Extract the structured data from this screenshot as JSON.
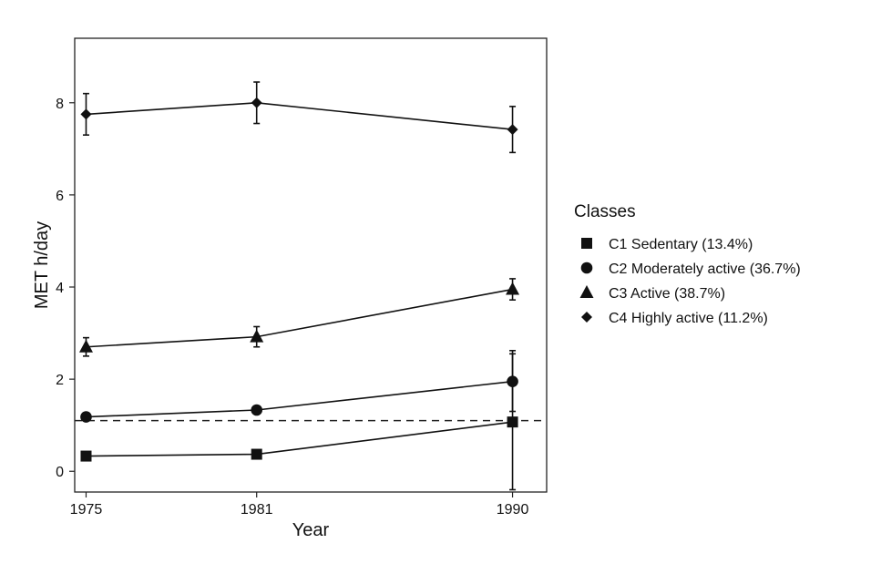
{
  "chart_data": {
    "type": "line",
    "title": "",
    "xlabel": "Year",
    "ylabel": "MET h/day",
    "x": [
      1975,
      1981,
      1990
    ],
    "x_ticks": [
      "1975",
      "1981",
      "1990"
    ],
    "y_ticks": [
      "0",
      "2",
      "4",
      "6",
      "8"
    ],
    "xlim": [
      1974.6,
      1991.2
    ],
    "ylim": [
      -0.45,
      9.4
    ],
    "grid": false,
    "reference_line": {
      "y": 1.1,
      "style": "dashed"
    },
    "legend": {
      "title": "Classes",
      "placement": "right"
    },
    "series": [
      {
        "name": "C1 Sedentary (13.4%)",
        "marker": "square",
        "values": [
          0.33,
          0.37,
          1.07
        ],
        "err_low": [
          0.33,
          0.37,
          -0.4
        ],
        "err_high": [
          0.33,
          0.37,
          2.55
        ]
      },
      {
        "name": "C2 Moderately active (36.7%)",
        "marker": "circle",
        "values": [
          1.18,
          1.33,
          1.95
        ],
        "err_low": [
          1.1,
          1.27,
          1.3
        ],
        "err_high": [
          1.26,
          1.4,
          2.62
        ]
      },
      {
        "name": "C3 Active (38.7%)",
        "marker": "triangle",
        "values": [
          2.7,
          2.92,
          3.95
        ],
        "err_low": [
          2.5,
          2.7,
          3.72
        ],
        "err_high": [
          2.9,
          3.14,
          4.18
        ]
      },
      {
        "name": "C4 Highly active (11.2%)",
        "marker": "diamond",
        "values": [
          7.75,
          8.0,
          7.42
        ],
        "err_low": [
          7.3,
          7.55,
          6.92
        ],
        "err_high": [
          8.2,
          8.45,
          7.92
        ]
      }
    ]
  }
}
